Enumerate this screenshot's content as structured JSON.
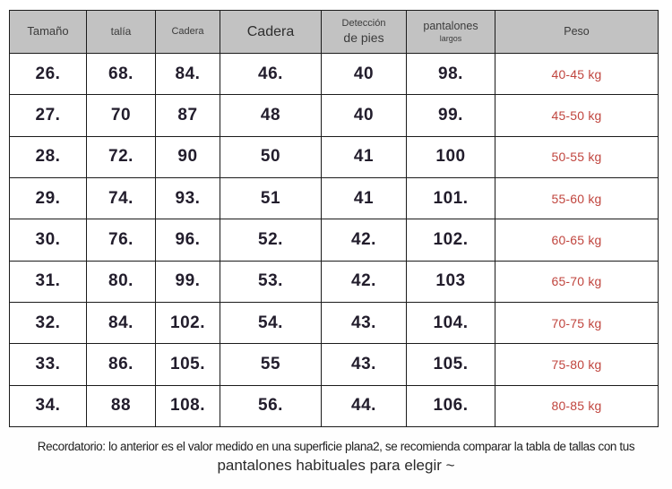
{
  "table": {
    "headers": [
      {
        "line1": "Tamaño"
      },
      {
        "line1": "talía"
      },
      {
        "line1": "Cadera"
      },
      {
        "line1": "Cadera"
      },
      {
        "line1": "Detección",
        "line2": "de pies"
      },
      {
        "line1": "pantalones",
        "line2": "largos"
      },
      {
        "line1": "Peso"
      }
    ],
    "rows": [
      [
        "26.",
        "68.",
        "84.",
        "46.",
        "40",
        "98.",
        "40-45 kg"
      ],
      [
        "27.",
        "70",
        "87",
        "48",
        "40",
        "99.",
        "45-50 kg"
      ],
      [
        "28.",
        "72.",
        "90",
        "50",
        "41",
        "100",
        "50-55 kg"
      ],
      [
        "29.",
        "74.",
        "93.",
        "51",
        "41",
        "101.",
        "55-60 kg"
      ],
      [
        "30.",
        "76.",
        "96.",
        "52.",
        "42.",
        "102.",
        "60-65 kg"
      ],
      [
        "31.",
        "80.",
        "99.",
        "53.",
        "42.",
        "103",
        "65-70 kg"
      ],
      [
        "32.",
        "84.",
        "102.",
        "54.",
        "43.",
        "104.",
        "70-75 kg"
      ],
      [
        "33.",
        "86.",
        "105.",
        "55",
        "43.",
        "105.",
        "75-80 kg"
      ],
      [
        "34.",
        "88",
        "108.",
        "56.",
        "44.",
        "106.",
        "80-85 kg"
      ]
    ]
  },
  "footer": {
    "line1": "Recordatorio: lo anterior es el valor medido en una superficie plana2, se recomienda comparar la tabla de tallas con tus",
    "line2": "pantalones habituales para elegir ~"
  },
  "colors": {
    "header_bg": "#c2c2c2",
    "data_text": "#221d2c",
    "weight_text": "#c0453e",
    "border": "#1b1b1b"
  }
}
